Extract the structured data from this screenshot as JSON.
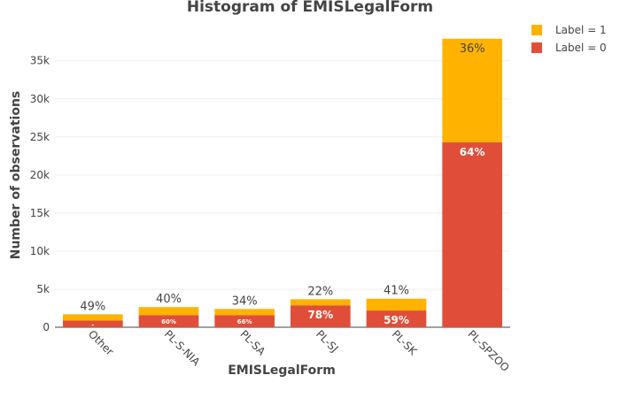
{
  "chart_data": {
    "type": "bar",
    "stacked": true,
    "title": "Histogram of EMISLegalForm",
    "xlabel": "EMISLegalForm",
    "ylabel": "Number of observations",
    "categories": [
      "Other",
      "PL-S-NIA",
      "PL-SA",
      "PL-SJ",
      "PL-SK",
      "PL-SPZOO"
    ],
    "ylim": [
      0,
      39500
    ],
    "yticks": [
      0,
      5000,
      10000,
      15000,
      20000,
      25000,
      30000,
      35000
    ],
    "ytick_labels": [
      "0",
      "5k",
      "10k",
      "15k",
      "20k",
      "25k",
      "30k",
      "35k"
    ],
    "grid": true,
    "legend_position": "top-right",
    "series": [
      {
        "name": "Label = 0",
        "color": "#e04e39",
        "values": [
          870,
          1600,
          1600,
          2880,
          2200,
          24300
        ],
        "labels": [
          "-",
          "60%",
          "66%",
          "78%",
          "59%",
          "64%"
        ]
      },
      {
        "name": "Label = 1",
        "color": "#ffb300",
        "values": [
          830,
          1050,
          800,
          800,
          1550,
          13600
        ],
        "labels": [
          "49%",
          "40%",
          "34%",
          "22%",
          "41%",
          "36%"
        ]
      }
    ]
  }
}
